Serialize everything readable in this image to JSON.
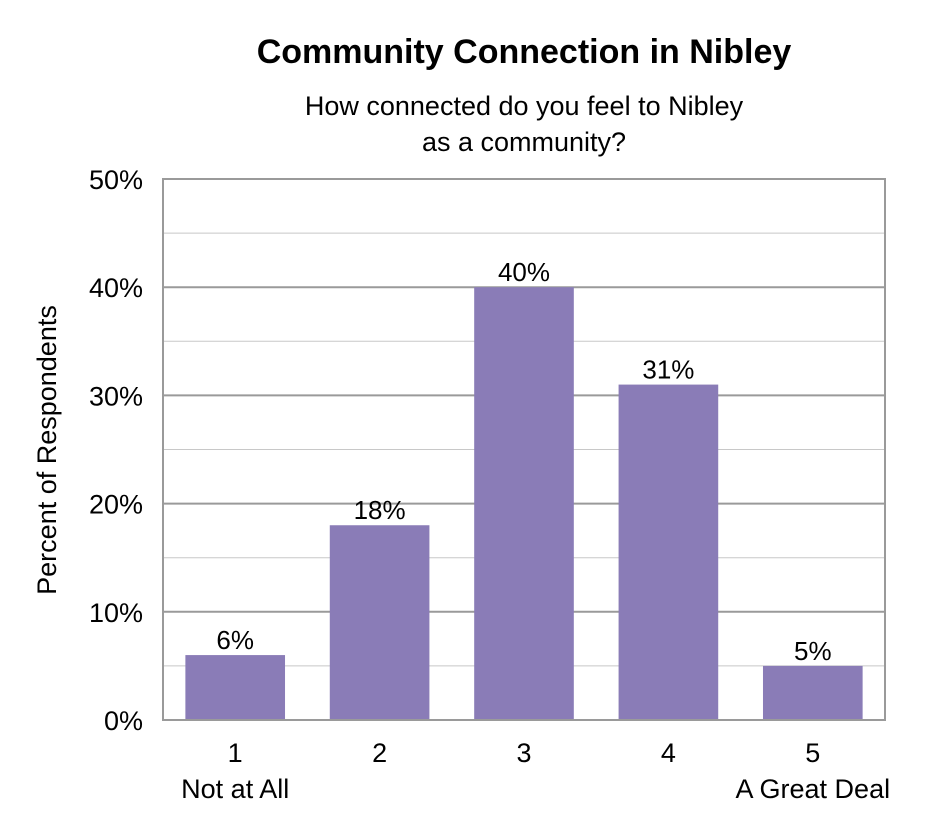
{
  "chart_data": {
    "type": "bar",
    "title": "Community Connection in Nibley",
    "subtitle_lines": [
      "How connected do you feel to Nibley",
      "as a community?"
    ],
    "ylabel": "Percent of Respondents",
    "xlabel": "",
    "categories": [
      "1",
      "2",
      "3",
      "4",
      "5"
    ],
    "category_sublabels": [
      "Not at All",
      "",
      "",
      "",
      "A Great Deal"
    ],
    "values": [
      6,
      18,
      40,
      31,
      5
    ],
    "value_labels": [
      "6%",
      "18%",
      "40%",
      "31%",
      "5%"
    ],
    "ylim": [
      0,
      50
    ],
    "yticks": [
      0,
      10,
      20,
      30,
      40,
      50
    ],
    "ytick_labels": [
      "0%",
      "10%",
      "20%",
      "30%",
      "40%",
      "50%"
    ],
    "grid": true,
    "bar_color": "#8a7cb7",
    "grid_color": "#c8c8c8"
  }
}
